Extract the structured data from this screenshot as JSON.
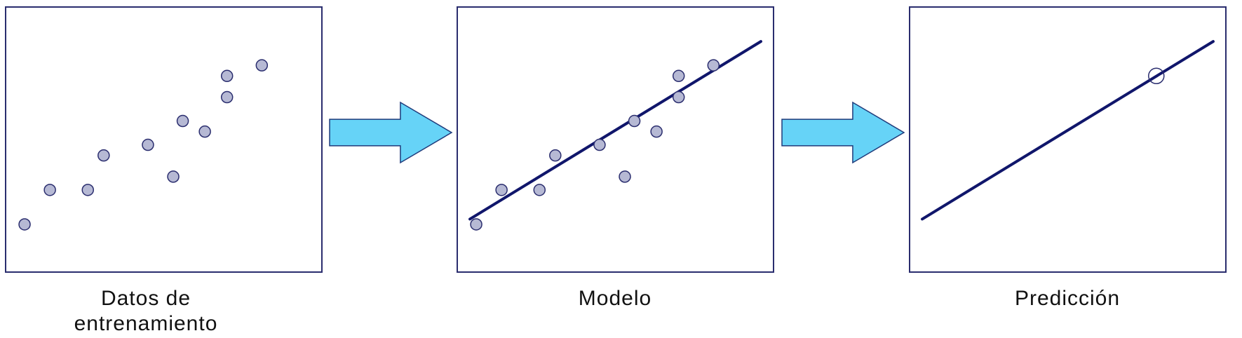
{
  "colors": {
    "panel_border": "#2a2d6e",
    "line": "#10166b",
    "point_fill": "#b6b9d4",
    "point_stroke": "#2a2d6e",
    "arrow_fill": "#66d3f7",
    "arrow_stroke": "#1f3a7a"
  },
  "steps": [
    {
      "caption_line1": "Datos de",
      "caption_line2": "entrenamiento"
    },
    {
      "caption_line1": "Modelo",
      "caption_line2": ""
    },
    {
      "caption_line1": "Predicción",
      "caption_line2": ""
    }
  ],
  "chart_data": [
    {
      "type": "scatter",
      "points": [
        {
          "x": 0.06,
          "y": 0.18
        },
        {
          "x": 0.14,
          "y": 0.31
        },
        {
          "x": 0.26,
          "y": 0.31
        },
        {
          "x": 0.31,
          "y": 0.44
        },
        {
          "x": 0.45,
          "y": 0.48
        },
        {
          "x": 0.53,
          "y": 0.36
        },
        {
          "x": 0.56,
          "y": 0.57
        },
        {
          "x": 0.63,
          "y": 0.53
        },
        {
          "x": 0.7,
          "y": 0.66
        },
        {
          "x": 0.7,
          "y": 0.74
        },
        {
          "x": 0.81,
          "y": 0.78
        }
      ],
      "fit_line": null,
      "grid": false
    },
    {
      "type": "scatter",
      "points": [
        {
          "x": 0.06,
          "y": 0.18
        },
        {
          "x": 0.14,
          "y": 0.31
        },
        {
          "x": 0.26,
          "y": 0.31
        },
        {
          "x": 0.31,
          "y": 0.44
        },
        {
          "x": 0.45,
          "y": 0.48
        },
        {
          "x": 0.53,
          "y": 0.36
        },
        {
          "x": 0.56,
          "y": 0.57
        },
        {
          "x": 0.63,
          "y": 0.53
        },
        {
          "x": 0.7,
          "y": 0.66
        },
        {
          "x": 0.7,
          "y": 0.74
        },
        {
          "x": 0.81,
          "y": 0.78
        }
      ],
      "fit_line": {
        "x1": 0.04,
        "y1": 0.2,
        "x2": 0.96,
        "y2": 0.87
      },
      "grid": false
    },
    {
      "type": "line",
      "points": [],
      "fit_line": {
        "x1": 0.04,
        "y1": 0.2,
        "x2": 0.96,
        "y2": 0.87
      },
      "prediction_point": {
        "x": 0.78,
        "y": 0.74
      },
      "grid": false
    }
  ]
}
